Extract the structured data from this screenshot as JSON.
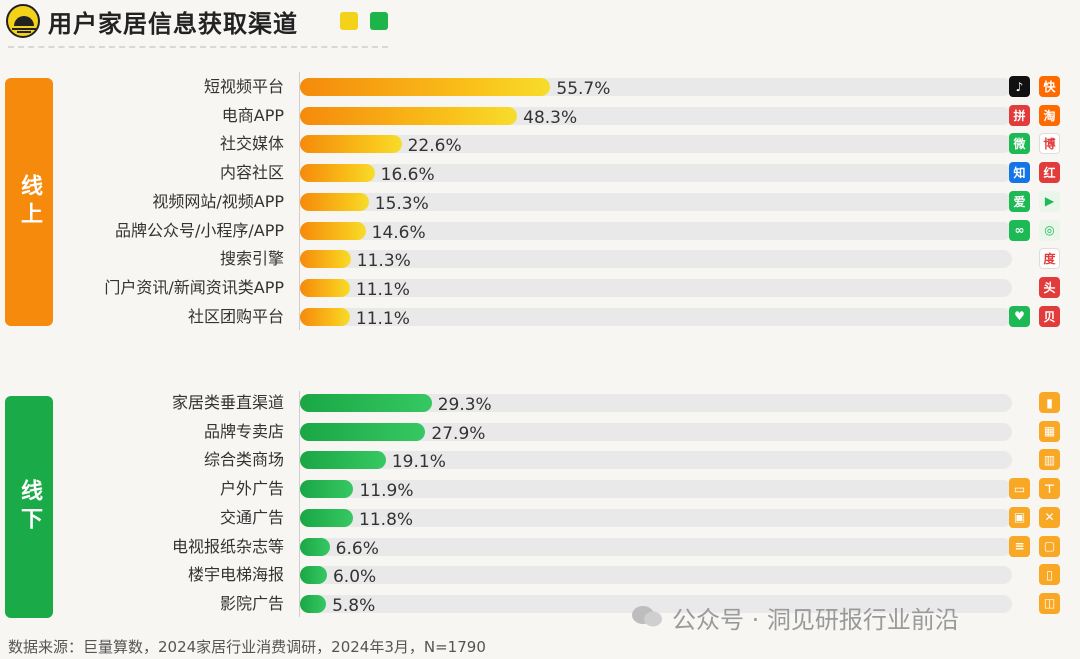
{
  "header": {
    "title": "用户家居信息获取渠道"
  },
  "sides": {
    "online": "线上",
    "offline": "线下"
  },
  "chart_data": {
    "type": "bar",
    "title": "用户家居信息获取渠道",
    "xlim": [
      0,
      100
    ],
    "groups": [
      {
        "name": "线上",
        "color": "#f58a0c",
        "categories": [
          "短视频平台",
          "电商APP",
          "社交媒体",
          "内容社区",
          "视频网站/视频APP",
          "品牌公众号/小程序/APP",
          "搜索引擎",
          "门户资讯/新闻资讯类APP",
          "社区团购平台"
        ],
        "values": [
          55.7,
          48.3,
          22.6,
          16.6,
          15.3,
          14.6,
          11.3,
          11.1,
          11.1
        ],
        "labels": [
          "55.7%",
          "48.3%",
          "22.6%",
          "16.6%",
          "15.3%",
          "14.6%",
          "11.3%",
          "11.1%",
          "11.1%"
        ]
      },
      {
        "name": "线下",
        "color": "#1aab48",
        "categories": [
          "家居类垂直渠道",
          "品牌专卖店",
          "综合类商场",
          "户外广告",
          "交通广告",
          "电视报纸杂志等",
          "楼宇电梯海报",
          "影院广告"
        ],
        "values": [
          29.3,
          27.9,
          19.1,
          11.9,
          11.8,
          6.6,
          6.0,
          5.8
        ],
        "labels": [
          "29.3%",
          "27.9%",
          "19.1%",
          "11.9%",
          "11.8%",
          "6.6%",
          "6.0%",
          "5.8%"
        ]
      }
    ]
  },
  "icons": {
    "online": [
      [
        {
          "name": "douyin-icon",
          "cls": "b",
          "t": "♪"
        },
        {
          "name": "kuaishou-icon",
          "cls": "o",
          "t": "快"
        }
      ],
      [
        {
          "name": "pinduoduo-icon",
          "cls": "r",
          "t": "拼"
        },
        {
          "name": "taobao-icon",
          "cls": "o",
          "t": "淘"
        }
      ],
      [
        {
          "name": "wechat-icon",
          "cls": "g",
          "t": "微"
        },
        {
          "name": "weibo-icon",
          "cls": "w",
          "t": "博"
        }
      ],
      [
        {
          "name": "zhihu-icon",
          "cls": "bl",
          "t": "知"
        },
        {
          "name": "xiaohongshu-icon",
          "cls": "r",
          "t": "红"
        }
      ],
      [
        {
          "name": "iqiyi-icon",
          "cls": "g",
          "t": "爱"
        },
        {
          "name": "tencent-video-icon",
          "cls": "lg",
          "t": "▶"
        }
      ],
      [
        {
          "name": "mini-program-icon",
          "cls": "g",
          "t": "∞"
        },
        {
          "name": "channels-icon",
          "cls": "lg",
          "t": "◎"
        }
      ],
      [
        {
          "name": "baidu-icon",
          "cls": "w",
          "t": "度"
        }
      ],
      [
        {
          "name": "toutiao-icon",
          "cls": "r",
          "t": "头"
        }
      ],
      [
        {
          "name": "meituan-youxuan-icon",
          "cls": "g",
          "t": "♥"
        },
        {
          "name": "beidian-icon",
          "cls": "r",
          "t": "贝"
        }
      ]
    ],
    "offline": [
      [
        {
          "name": "bar-chart-icon",
          "cls": "yo",
          "t": "▮"
        }
      ],
      [
        {
          "name": "store-icon",
          "cls": "yo",
          "t": "▦"
        }
      ],
      [
        {
          "name": "mall-icon",
          "cls": "yo",
          "t": "▥"
        }
      ],
      [
        {
          "name": "billboard-icon",
          "cls": "yo",
          "t": "▭"
        },
        {
          "name": "signpost-icon",
          "cls": "yo",
          "t": "⊤"
        }
      ],
      [
        {
          "name": "bus-icon",
          "cls": "yo",
          "t": "▣"
        },
        {
          "name": "road-icon",
          "cls": "yo",
          "t": "✕"
        }
      ],
      [
        {
          "name": "newspaper-icon",
          "cls": "yo",
          "t": "≡"
        },
        {
          "name": "tv-icon",
          "cls": "yo",
          "t": "▢"
        }
      ],
      [
        {
          "name": "building-icon",
          "cls": "yo",
          "t": "▯"
        }
      ],
      [
        {
          "name": "cinema-icon",
          "cls": "yo",
          "t": "◫"
        }
      ]
    ]
  },
  "footer": {
    "source": "数据来源：巨量算数，2024家居行业消费调研，2024年3月，N=1790",
    "watermark": "公众号 · 洞见研报行业前沿"
  }
}
